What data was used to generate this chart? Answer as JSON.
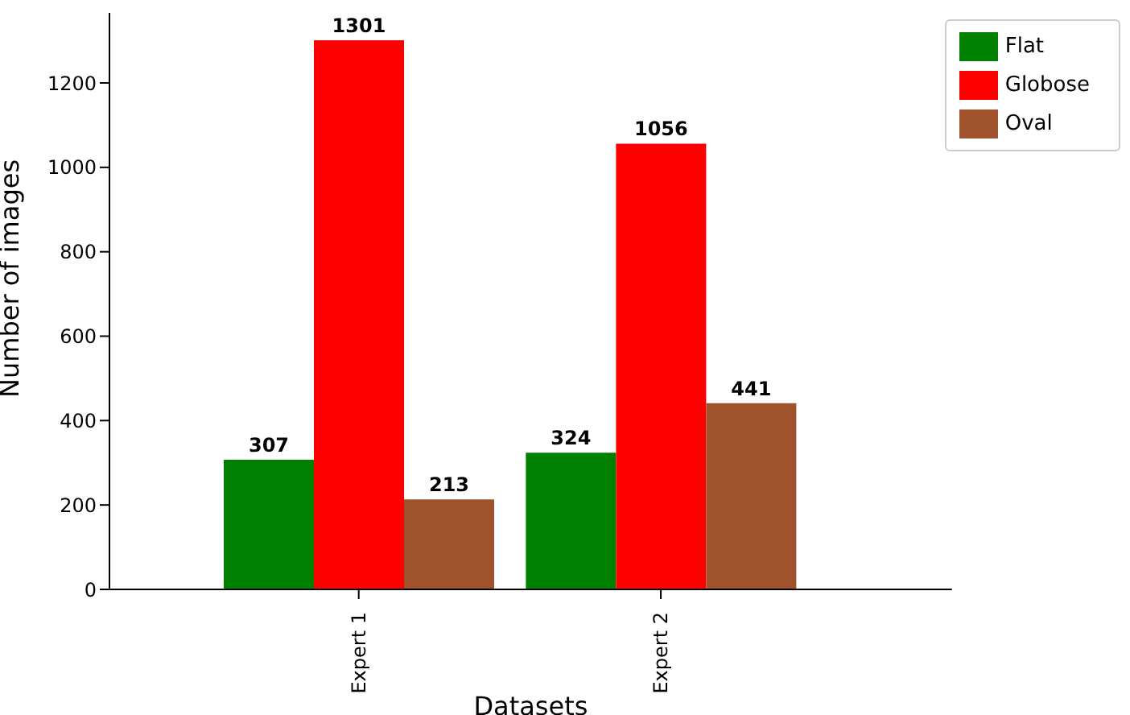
{
  "chart_data": {
    "type": "bar",
    "xlabel": "Datasets",
    "ylabel": "Number of images",
    "categories": [
      "Expert 1",
      "Expert 2"
    ],
    "series": [
      {
        "name": "Flat",
        "color": "#008000",
        "values": [
          307,
          324
        ]
      },
      {
        "name": "Globose",
        "color": "#ff0000",
        "values": [
          1301,
          1056
        ]
      },
      {
        "name": "Oval",
        "color": "#a0522d",
        "values": [
          213,
          441
        ]
      }
    ],
    "ylim": [
      0,
      1366
    ],
    "yticks": [
      0,
      200,
      400,
      600,
      800,
      1000,
      1200
    ],
    "data_labels": true,
    "legend": "top right",
    "grid": false
  }
}
